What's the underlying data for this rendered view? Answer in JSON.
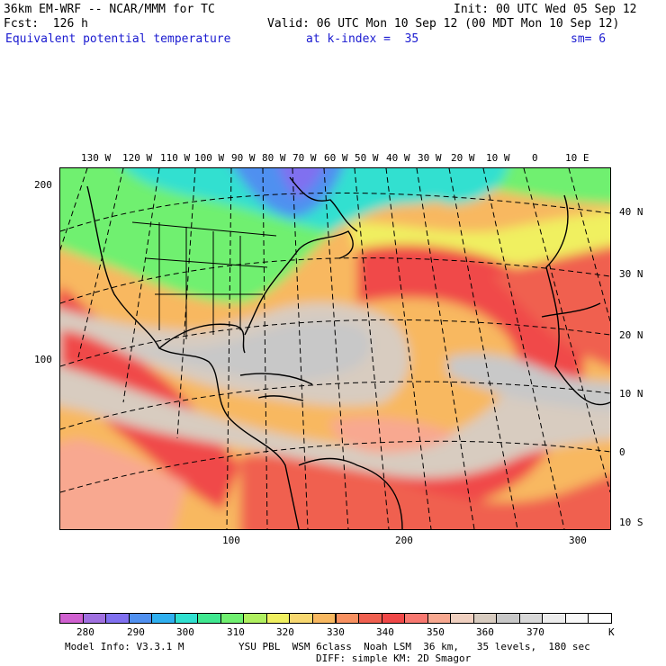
{
  "header": {
    "model_line": "36km EM-WRF -- NCAR/MMM for TC",
    "init_line": "Init: 00 UTC Wed 05 Sep 12",
    "fcst_line": "Fcst:  126 h",
    "valid_line": "Valid: 06 UTC Mon 10 Sep 12 (00 MDT Mon 10 Sep 12)",
    "field_name": "Equivalent potential temperature",
    "level": "at k-index =  35",
    "smoothing": "sm= 6"
  },
  "map": {
    "lon_labels": [
      "130 W",
      "120 W",
      "110 W",
      "100 W",
      "90 W",
      "80 W",
      "70 W",
      "60 W",
      "50 W",
      "40 W",
      "30 W",
      "20 W",
      "10 W",
      "0",
      "10 E"
    ],
    "lat_labels": [
      "40 N",
      "30 N",
      "20 N",
      "10 N",
      "0",
      "10 S"
    ],
    "grid_y_labels": [
      "200",
      "100"
    ],
    "grid_x_labels": [
      "100",
      "200",
      "300"
    ]
  },
  "colorbar": {
    "colors": [
      "#d060d0",
      "#a070e0",
      "#8070f0",
      "#5090f0",
      "#30b0f0",
      "#30e0d0",
      "#40e890",
      "#70f070",
      "#b0f060",
      "#f0f060",
      "#f8d870",
      "#f8b860",
      "#f89060",
      "#f06050",
      "#f04848",
      "#f87870",
      "#f8a890",
      "#f0d0c0",
      "#d8ccc0",
      "#c8c8c8",
      "#d8d8d8",
      "#ececec",
      "#f8f8f8",
      "#ffffff"
    ],
    "labels": [
      "280",
      "290",
      "300",
      "310",
      "320",
      "330",
      "340",
      "350",
      "360",
      "370"
    ],
    "unit": "K"
  },
  "footer": {
    "model_info": "Model Info: V3.3.1 M",
    "physics_line1": "YSU PBL  WSM 6class  Noah LSM  36 km,   35 levels,  180 sec",
    "physics_line2": "DIFF: simple KM: 2D Smagor"
  }
}
